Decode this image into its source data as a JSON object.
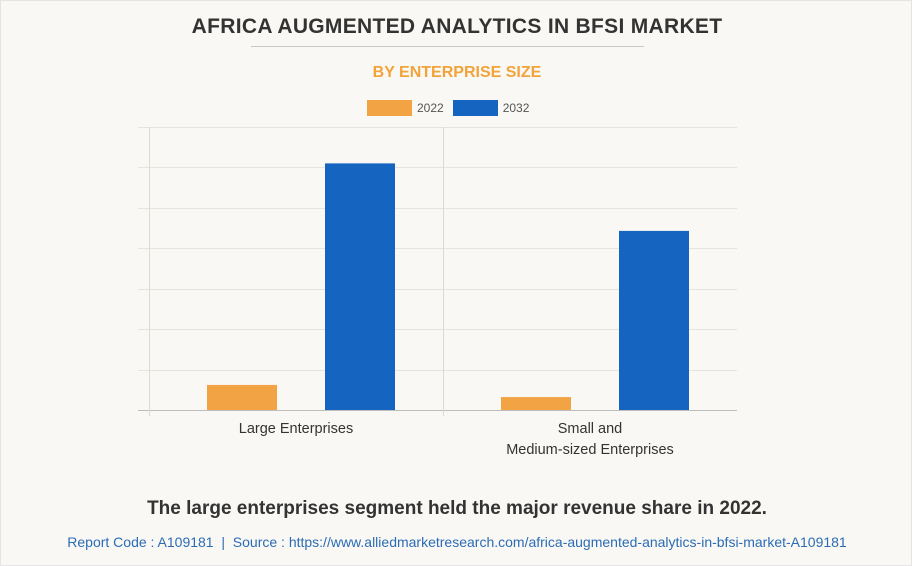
{
  "header": {
    "title": "AFRICA AUGMENTED ANALYTICS IN BFSI MARKET",
    "subtitle": "BY ENTERPRISE SIZE"
  },
  "colors": {
    "series_2022": "#f2a444",
    "series_2032": "#1565c0",
    "subtitle": "#f2a33a",
    "footer_link": "#2b6cb5"
  },
  "chart_data": {
    "type": "bar",
    "title": "AFRICA AUGMENTED ANALYTICS IN BFSI MARKET",
    "subtitle": "BY ENTERPRISE SIZE",
    "xlabel": "",
    "ylabel": "",
    "categories": [
      "Large Enterprises",
      "Small and\nMedium-sized Enterprises"
    ],
    "category_lines": [
      [
        "Large Enterprises"
      ],
      [
        "Small and",
        "Medium-sized Enterprises"
      ]
    ],
    "series": [
      {
        "name": "2022",
        "values": [
          0.62,
          0.32
        ]
      },
      {
        "name": "2032",
        "values": [
          6.1,
          4.43
        ]
      }
    ],
    "ylim": [
      0,
      7
    ],
    "y_ticks_shown": false,
    "grid": true,
    "legend": "top-center",
    "note": "Values in relative gridline units; axis has no tick labels"
  },
  "caption": "The large enterprises segment held the major revenue share in 2022.",
  "footer": {
    "text": "Report Code : A109181  |  Source : https://www.alliedmarketresearch.com/africa-augmented-analytics-in-bfsi-market-A109181"
  }
}
